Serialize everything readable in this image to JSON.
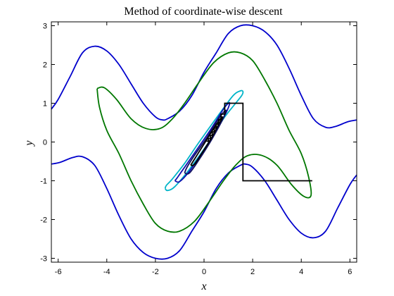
{
  "chart_data": {
    "type": "line",
    "title": "Method of coordinate-wise descent",
    "xlabel": "x",
    "ylabel": "y",
    "xlim": [
      -6.28,
      6.28
    ],
    "ylim": [
      -3.1,
      3.1
    ],
    "grid": false,
    "legend": "none",
    "xticks": [
      -6,
      -4,
      -2,
      0,
      2,
      4,
      6
    ],
    "xtick_labels": [
      "-6",
      "-4",
      "-2",
      "0",
      "2",
      "4",
      "6"
    ],
    "yticks": [
      -3,
      -2,
      -1,
      0,
      1,
      2,
      3
    ],
    "ytick_labels": [
      "-3",
      "-2",
      "-1",
      "0",
      "1",
      "2",
      "3"
    ],
    "contours": [
      {
        "color": "#0000cc",
        "points": [
          [
            -6.28,
            -0.57
          ],
          [
            -5.9,
            -0.52
          ],
          [
            -5.4,
            -0.4
          ],
          [
            -5.0,
            -0.38
          ],
          [
            -4.5,
            -0.6
          ],
          [
            -4.0,
            -1.2
          ],
          [
            -3.5,
            -1.9
          ],
          [
            -3.0,
            -2.5
          ],
          [
            -2.5,
            -2.85
          ],
          [
            -2.0,
            -3.0
          ],
          [
            -1.5,
            -3.0
          ],
          [
            -1.0,
            -2.8
          ],
          [
            -0.5,
            -2.3
          ],
          [
            0.0,
            -1.8
          ],
          [
            0.5,
            -1.2
          ],
          [
            1.0,
            -0.8
          ],
          [
            1.5,
            -0.6
          ],
          [
            1.7,
            -0.57
          ],
          [
            2.0,
            -0.65
          ],
          [
            2.5,
            -1.0
          ],
          [
            3.0,
            -1.5
          ],
          [
            3.5,
            -2.0
          ],
          [
            4.0,
            -2.35
          ],
          [
            4.5,
            -2.47
          ],
          [
            5.0,
            -2.3
          ],
          [
            5.5,
            -1.7
          ],
          [
            6.0,
            -1.1
          ],
          [
            6.28,
            -0.85
          ]
        ]
      },
      {
        "color": "#0000cc",
        "points": [
          [
            -6.28,
            0.85
          ],
          [
            -6.0,
            1.1
          ],
          [
            -5.5,
            1.7
          ],
          [
            -5.0,
            2.3
          ],
          [
            -4.5,
            2.47
          ],
          [
            -4.0,
            2.35
          ],
          [
            -3.5,
            2.0
          ],
          [
            -3.0,
            1.5
          ],
          [
            -2.5,
            1.0
          ],
          [
            -2.0,
            0.65
          ],
          [
            -1.7,
            0.57
          ],
          [
            -1.5,
            0.6
          ],
          [
            -1.0,
            0.8
          ],
          [
            -0.5,
            1.2
          ],
          [
            0.0,
            1.8
          ],
          [
            0.5,
            2.3
          ],
          [
            1.0,
            2.8
          ],
          [
            1.5,
            3.0
          ],
          [
            2.0,
            3.0
          ],
          [
            2.5,
            2.85
          ],
          [
            3.0,
            2.5
          ],
          [
            3.5,
            1.9
          ],
          [
            4.0,
            1.2
          ],
          [
            4.5,
            0.6
          ],
          [
            5.0,
            0.38
          ],
          [
            5.4,
            0.4
          ],
          [
            5.9,
            0.52
          ],
          [
            6.28,
            0.57
          ]
        ]
      },
      {
        "color": "#007700",
        "points": [
          [
            -4.4,
            1.38
          ],
          [
            -4.1,
            1.4
          ],
          [
            -3.6,
            1.1
          ],
          [
            -3.0,
            0.6
          ],
          [
            -2.4,
            0.35
          ],
          [
            -1.8,
            0.35
          ],
          [
            -1.3,
            0.6
          ],
          [
            -0.8,
            1.0
          ],
          [
            -0.2,
            1.55
          ],
          [
            0.4,
            2.05
          ],
          [
            1.0,
            2.3
          ],
          [
            1.5,
            2.3
          ],
          [
            2.0,
            2.1
          ],
          [
            2.5,
            1.6
          ],
          [
            3.0,
            1.0
          ],
          [
            3.5,
            0.3
          ],
          [
            4.0,
            -0.3
          ],
          [
            4.3,
            -0.9
          ],
          [
            4.4,
            -1.38
          ],
          [
            4.1,
            -1.4
          ],
          [
            3.6,
            -1.1
          ],
          [
            3.0,
            -0.6
          ],
          [
            2.4,
            -0.35
          ],
          [
            1.8,
            -0.35
          ],
          [
            1.3,
            -0.6
          ],
          [
            0.8,
            -1.0
          ],
          [
            0.2,
            -1.55
          ],
          [
            -0.4,
            -2.05
          ],
          [
            -1.0,
            -2.3
          ],
          [
            -1.5,
            -2.3
          ],
          [
            -2.0,
            -2.1
          ],
          [
            -2.5,
            -1.6
          ],
          [
            -3.0,
            -1.0
          ],
          [
            -3.5,
            -0.3
          ],
          [
            -4.0,
            0.3
          ],
          [
            -4.3,
            0.9
          ],
          [
            -4.4,
            1.38
          ]
        ]
      },
      {
        "color": "#00b4c8",
        "points": [
          [
            -1.6,
            -1.2
          ],
          [
            -1.5,
            -1.25
          ],
          [
            -1.2,
            -1.15
          ],
          [
            -0.6,
            -0.7
          ],
          [
            0.2,
            0.0
          ],
          [
            0.8,
            0.6
          ],
          [
            1.3,
            1.0
          ],
          [
            1.55,
            1.2
          ],
          [
            1.6,
            1.3
          ],
          [
            1.5,
            1.32
          ],
          [
            1.2,
            1.2
          ],
          [
            0.6,
            0.7
          ],
          [
            -0.2,
            0.0
          ],
          [
            -0.8,
            -0.55
          ],
          [
            -1.3,
            -0.95
          ],
          [
            -1.55,
            -1.12
          ],
          [
            -1.6,
            -1.2
          ]
        ]
      },
      {
        "color": "#1010b0",
        "points": [
          [
            -1.2,
            -1.0
          ],
          [
            -1.0,
            -1.02
          ],
          [
            -0.6,
            -0.75
          ],
          [
            0.0,
            -0.2
          ],
          [
            0.5,
            0.3
          ],
          [
            0.9,
            0.75
          ],
          [
            1.05,
            0.98
          ],
          [
            1.0,
            1.0
          ],
          [
            0.8,
            0.85
          ],
          [
            0.3,
            0.35
          ],
          [
            -0.3,
            -0.2
          ],
          [
            -0.8,
            -0.65
          ],
          [
            -1.1,
            -0.92
          ],
          [
            -1.2,
            -1.0
          ]
        ]
      },
      {
        "color": "#101060",
        "points": [
          [
            -0.8,
            -0.8
          ],
          [
            -0.6,
            -0.8
          ],
          [
            -0.2,
            -0.45
          ],
          [
            0.3,
            0.05
          ],
          [
            0.7,
            0.5
          ],
          [
            0.9,
            0.78
          ],
          [
            0.85,
            0.8
          ],
          [
            0.6,
            0.6
          ],
          [
            0.1,
            0.1
          ],
          [
            -0.4,
            -0.35
          ],
          [
            -0.7,
            -0.65
          ],
          [
            -0.8,
            -0.8
          ]
        ]
      },
      {
        "color": "#000000",
        "points": [
          [
            -0.55,
            -0.6
          ],
          [
            -0.4,
            -0.58
          ],
          [
            -0.1,
            -0.3
          ],
          [
            0.3,
            0.1
          ],
          [
            0.6,
            0.45
          ],
          [
            0.75,
            0.62
          ],
          [
            0.7,
            0.62
          ],
          [
            0.4,
            0.35
          ],
          [
            0.0,
            -0.05
          ],
          [
            -0.35,
            -0.4
          ],
          [
            -0.55,
            -0.6
          ]
        ]
      }
    ],
    "descent_path": {
      "color": "#000000",
      "points": [
        [
          4.45,
          -1.0
        ],
        [
          1.6,
          -1.0
        ],
        [
          1.6,
          1.0
        ],
        [
          0.85,
          1.0
        ],
        [
          0.85,
          0.72
        ],
        [
          0.7,
          0.72
        ],
        [
          0.7,
          0.58
        ],
        [
          0.6,
          0.58
        ],
        [
          0.6,
          0.46
        ],
        [
          0.5,
          0.46
        ],
        [
          0.5,
          0.36
        ],
        [
          0.42,
          0.36
        ],
        [
          0.42,
          0.26
        ],
        [
          0.34,
          0.26
        ],
        [
          0.34,
          0.17
        ],
        [
          0.26,
          0.17
        ],
        [
          0.26,
          0.09
        ],
        [
          0.18,
          0.09
        ],
        [
          0.18,
          0.02
        ],
        [
          0.1,
          0.02
        ]
      ]
    }
  }
}
